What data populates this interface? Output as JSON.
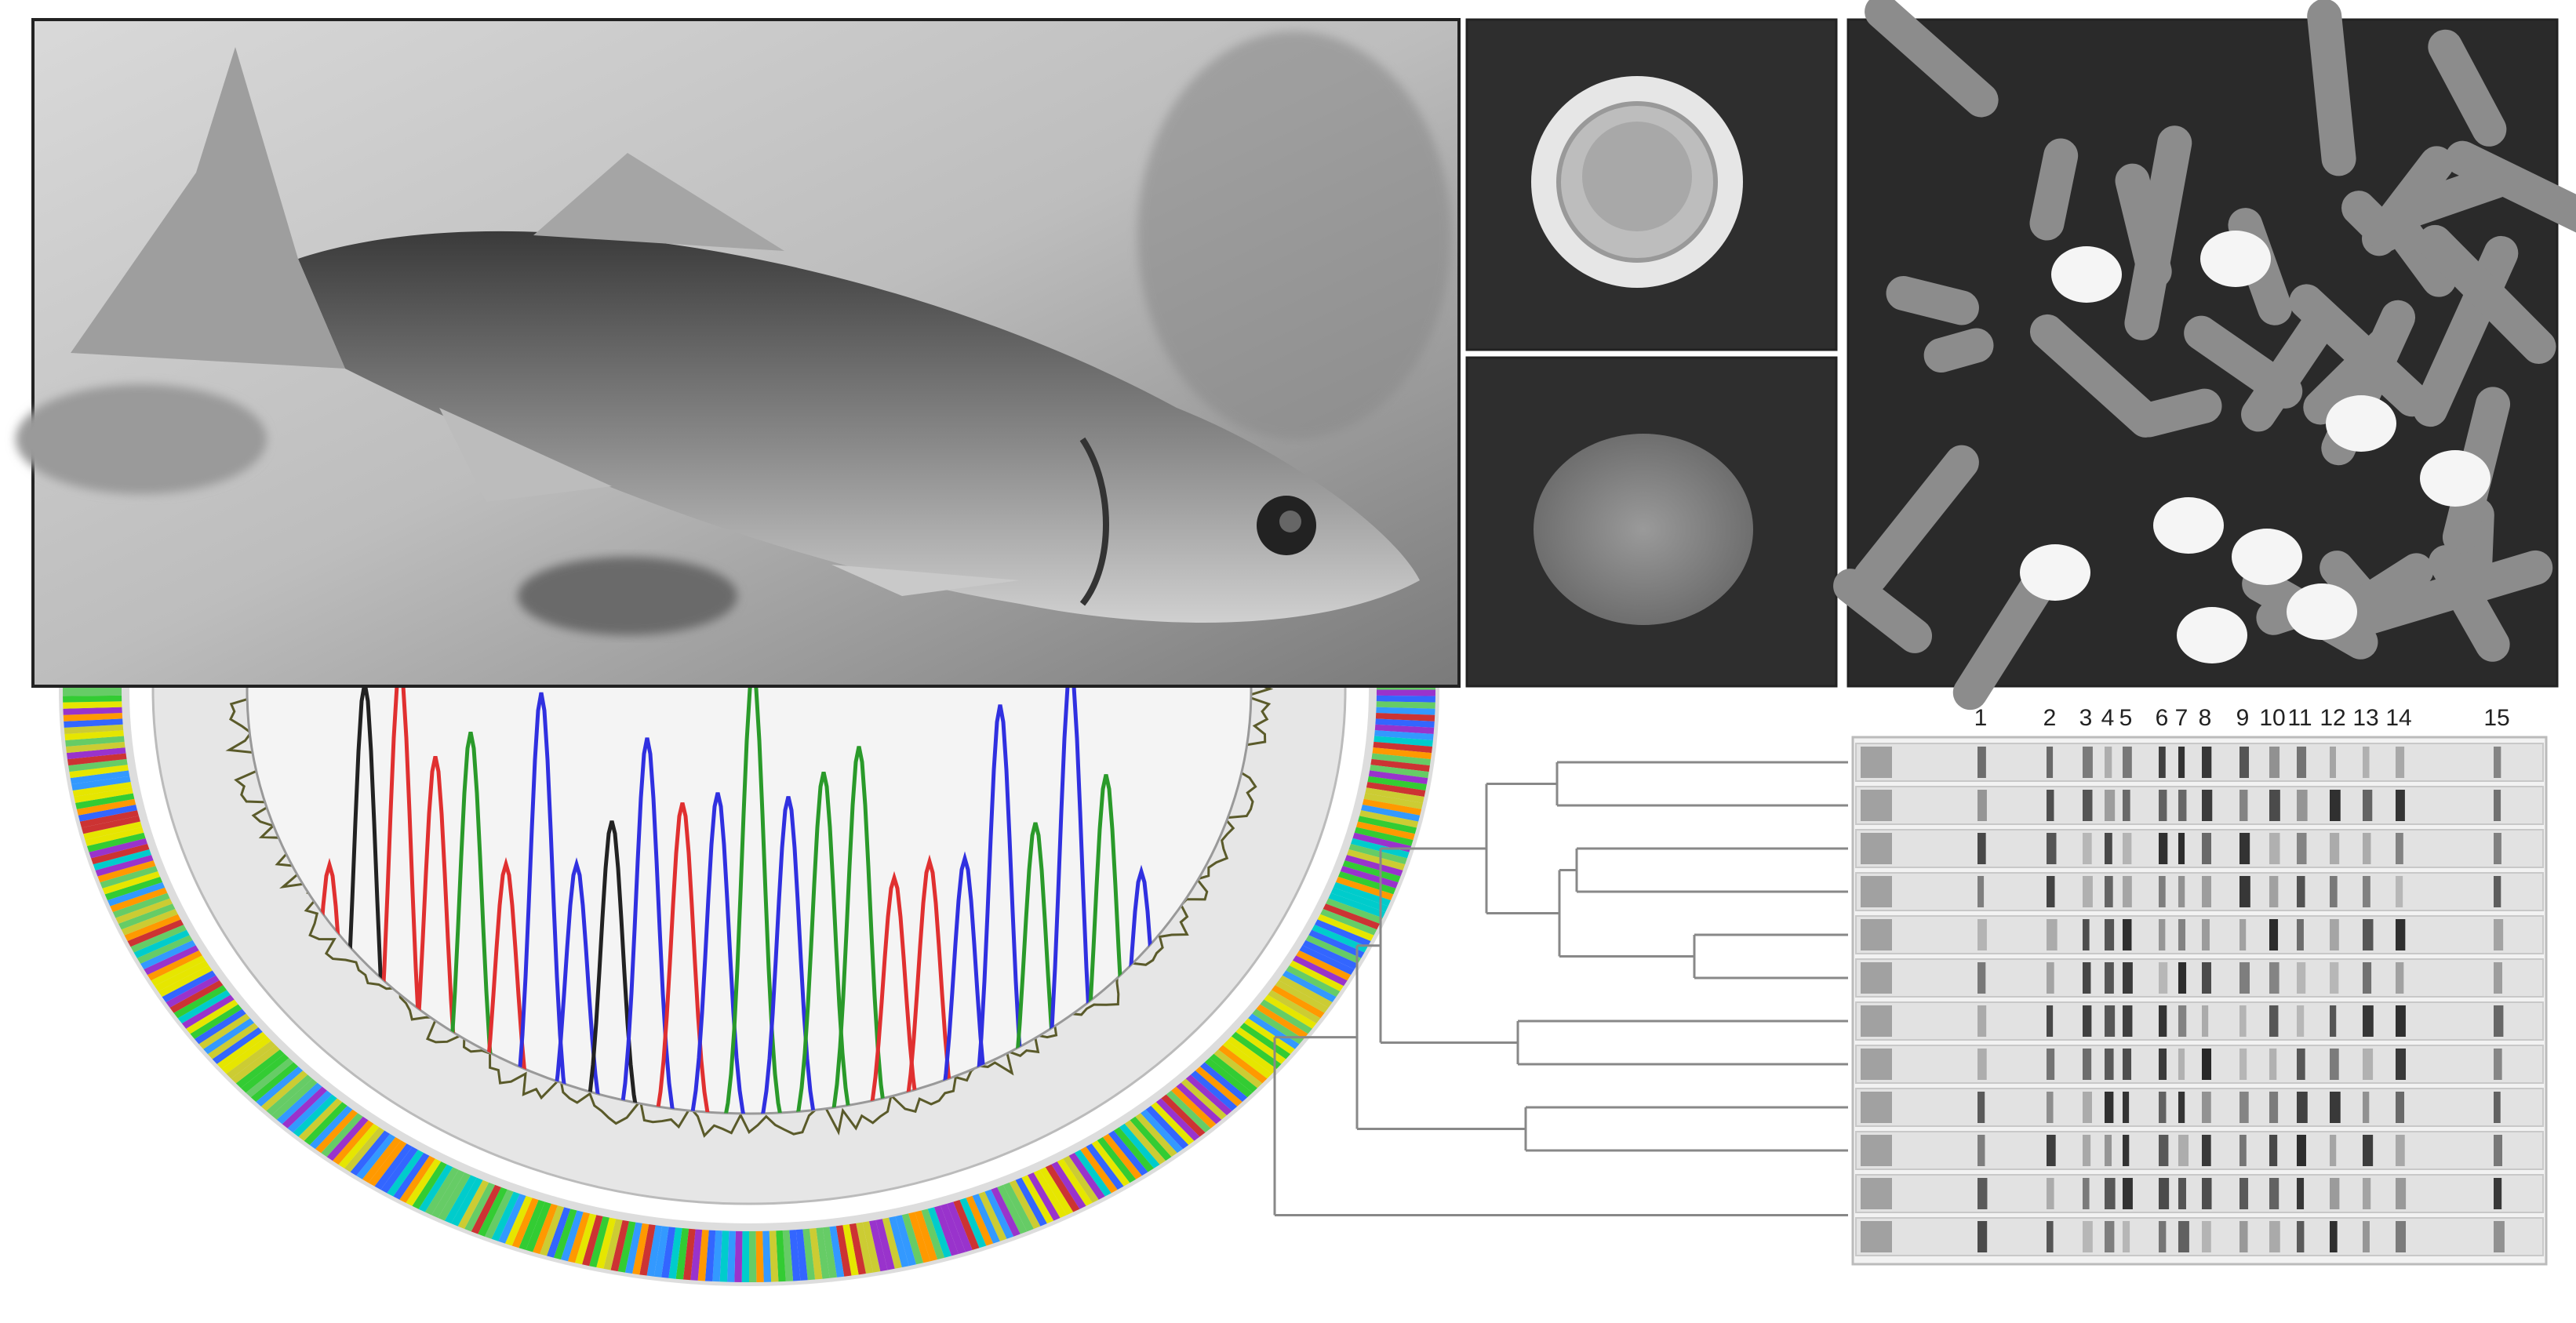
{
  "gel": {
    "band_labels": [
      "1",
      "2",
      "3",
      "4",
      "5",
      "6",
      "7",
      "8",
      "9",
      "10",
      "11",
      "12",
      "13",
      "14",
      "15"
    ]
  }
}
